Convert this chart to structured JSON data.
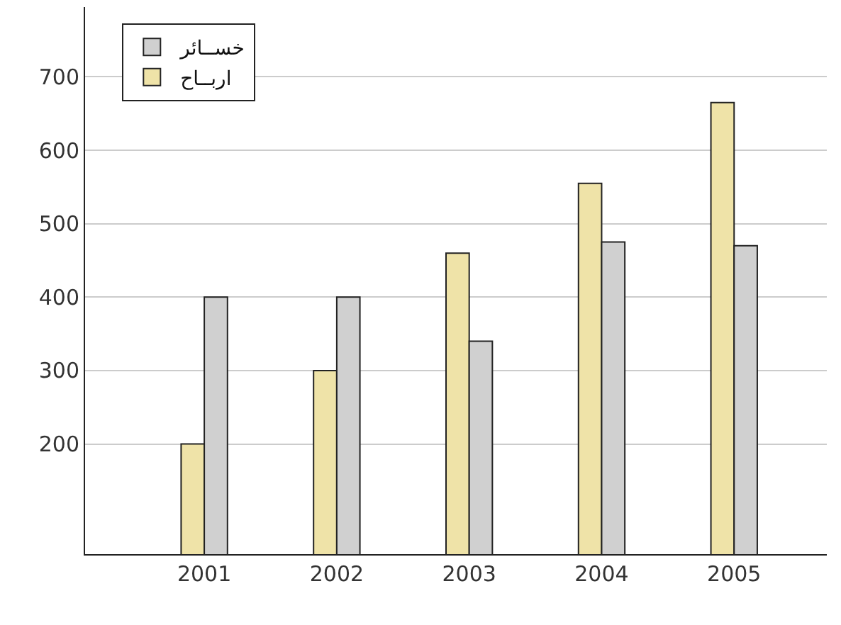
{
  "chart_data": {
    "type": "bar",
    "categories": [
      "2001",
      "2002",
      "2003",
      "2004",
      "2005"
    ],
    "series": [
      {
        "name": "اربــاح",
        "color": "#efe3a8",
        "values": [
          200,
          300,
          460,
          555,
          665
        ]
      },
      {
        "name": "خســائر",
        "color": "#d0d0d0",
        "values": [
          400,
          400,
          340,
          475,
          470
        ]
      }
    ],
    "ylim": [
      50,
      795
    ],
    "yticks": [
      200,
      300,
      400,
      500,
      600,
      700
    ],
    "grid": "y",
    "legend": "top left"
  }
}
